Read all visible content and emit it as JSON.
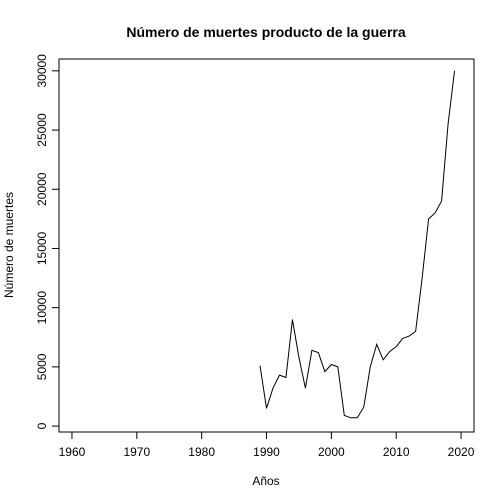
{
  "chart_data": {
    "type": "line",
    "title": "Número de muertes producto de la guerra",
    "xlabel": "Años",
    "ylabel": "Número de muertes",
    "xlim": [
      1958,
      2022
    ],
    "ylim": [
      -500,
      31000
    ],
    "xticks": [
      1960,
      1970,
      1980,
      1990,
      2000,
      2010,
      2020
    ],
    "yticks": [
      0,
      5000,
      10000,
      15000,
      20000,
      25000,
      30000
    ],
    "grid": false,
    "color": "#000000",
    "x": [
      1989,
      1990,
      1991,
      1992,
      1993,
      1994,
      1995,
      1996,
      1997,
      1998,
      1999,
      2000,
      2001,
      2002,
      2003,
      2004,
      2005,
      2006,
      2007,
      2008,
      2009,
      2010,
      2011,
      2012,
      2013,
      2014,
      2015,
      2016,
      2017,
      2018,
      2019
    ],
    "y": [
      5100,
      1500,
      3200,
      4300,
      4100,
      9000,
      5800,
      3200,
      6400,
      6200,
      4600,
      5200,
      5000,
      900,
      700,
      700,
      1600,
      5000,
      6900,
      5600,
      6300,
      6700,
      7400,
      7600,
      8000,
      12500,
      17500,
      18000,
      19000,
      25500,
      30000
    ]
  }
}
